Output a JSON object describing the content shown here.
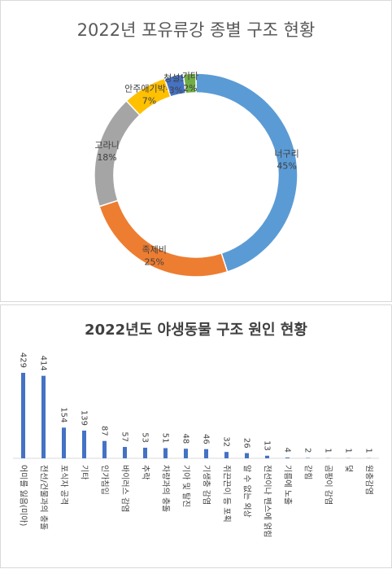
{
  "chart_data": [
    {
      "type": "pie",
      "title": "2022년 포유류강 종별 구조 현황",
      "categories": [
        "너구리",
        "족제비",
        "고라니",
        "안주애기박쥐",
        "청설모",
        "기타"
      ],
      "values": [
        45,
        25,
        18,
        7,
        3,
        2
      ],
      "value_labels": [
        "45%",
        "25%",
        "18%",
        "7%",
        "3%",
        "2%"
      ],
      "colors": [
        "#5b9bd5",
        "#ed7d31",
        "#a5a5a5",
        "#ffc000",
        "#4472c4",
        "#70ad47"
      ]
    },
    {
      "type": "bar",
      "title": "2022년도 야생동물 구조 원인 현황",
      "categories": [
        "어미를 잃음(미아)",
        "전선/건물과의 충돌",
        "포식자 공격",
        "기타",
        "인가침입",
        "바이러스 감염",
        "추락",
        "차량과의 충돌",
        "기아 및 탈진",
        "기생충 감염",
        "쥐끈끈이 등 포획",
        "알 수 없는 외상",
        "전선이나 펜스에 얽힘",
        "기름에 노출",
        "갇힘",
        "곰팡이 감염",
        "덫",
        "원충감염"
      ],
      "values": [
        429,
        414,
        154,
        139,
        87,
        57,
        53,
        51,
        48,
        46,
        32,
        26,
        13,
        4,
        2,
        1,
        1,
        1
      ],
      "color": "#4472c4"
    }
  ]
}
